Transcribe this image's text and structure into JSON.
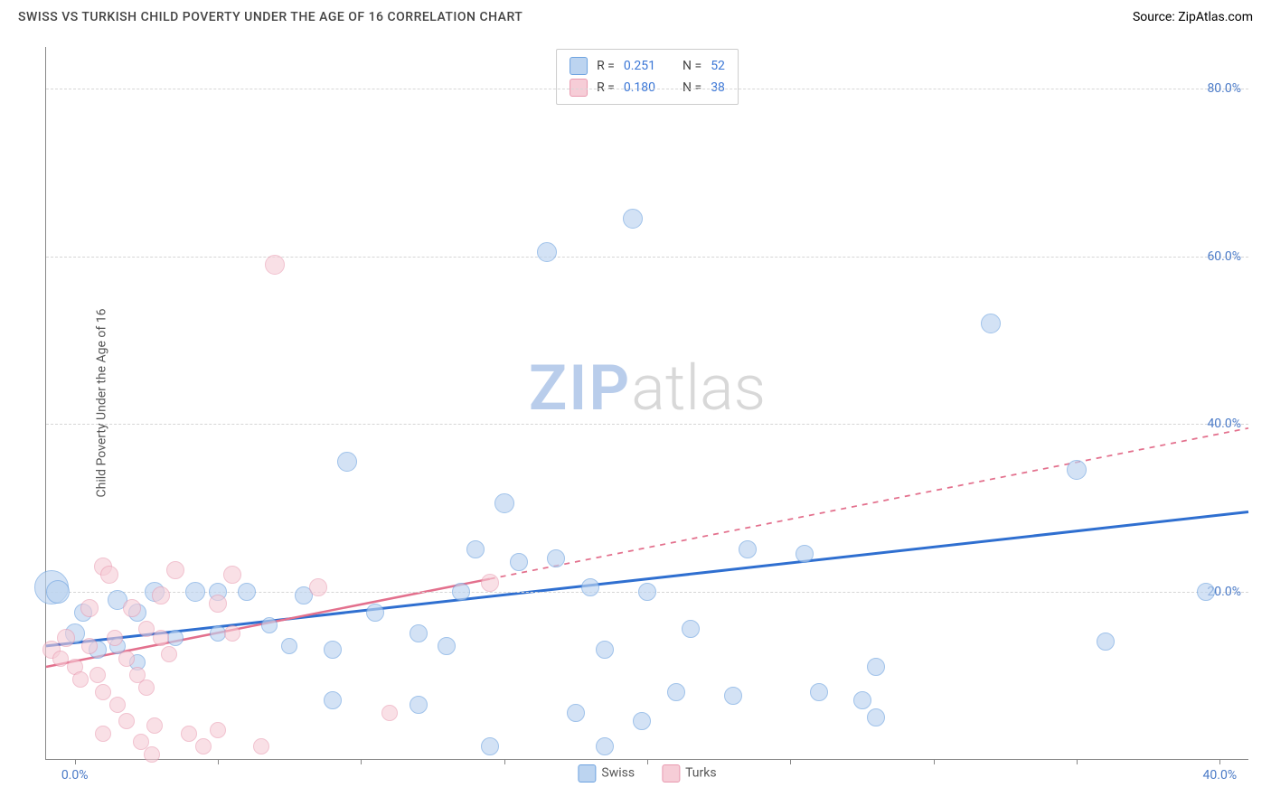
{
  "header": {
    "title": "SWISS VS TURKISH CHILD POVERTY UNDER THE AGE OF 16 CORRELATION CHART",
    "source_prefix": "Source: ",
    "source": "ZipAtlas.com"
  },
  "watermark": {
    "part1": "ZIP",
    "part2": "atlas"
  },
  "chart": {
    "type": "scatter-with-trend",
    "ylabel": "Child Poverty Under the Age of 16",
    "background_color": "#ffffff",
    "grid_color": "#d6d6d6",
    "axis_color": "#888888",
    "xlim": [
      -1,
      41
    ],
    "ylim": [
      0,
      85
    ],
    "yticks": [
      20,
      40,
      60,
      80
    ],
    "ytick_labels": [
      "20.0%",
      "40.0%",
      "60.0%",
      "80.0%"
    ],
    "ytick_color": "#4a7ac7",
    "xtick_marks": [
      0,
      5,
      10,
      15,
      20,
      25,
      30,
      35,
      40
    ],
    "xtick_labels": [
      {
        "x": 0,
        "text": "0.0%"
      },
      {
        "x": 40,
        "text": "40.0%"
      }
    ],
    "legend_top": {
      "border_color": "#cccccc",
      "rows": [
        {
          "swatch_fill": "#bcd4f0",
          "swatch_border": "#6ea3e0",
          "r_label": "R =",
          "r_value": "0.251",
          "n_label": "N =",
          "n_value": "52"
        },
        {
          "swatch_fill": "#f6cdd7",
          "swatch_border": "#e99ab0",
          "r_label": "R =",
          "r_value": "0.180",
          "n_label": "N =",
          "n_value": "38"
        }
      ]
    },
    "legend_bottom": [
      {
        "swatch_fill": "#bcd4f0",
        "swatch_border": "#6ea3e0",
        "label": "Swiss"
      },
      {
        "swatch_fill": "#f6cdd7",
        "swatch_border": "#e99ab0",
        "label": "Turks"
      }
    ],
    "series": [
      {
        "name": "Swiss",
        "marker_fill": "#bcd4f0",
        "marker_border": "#6ea3e0",
        "marker_fill_opacity": 0.65,
        "marker_base_radius": 9,
        "trend": {
          "color": "#2f6fd0",
          "width": 3,
          "solid_from": {
            "x": -1,
            "y": 13.5
          },
          "solid_to": {
            "x": 41,
            "y": 29.5
          },
          "dashed_extend": false
        },
        "points": [
          {
            "x": -0.8,
            "y": 20.5,
            "r": 18
          },
          {
            "x": -0.6,
            "y": 20.0,
            "r": 12
          },
          {
            "x": 0.0,
            "y": 15.0,
            "r": 10
          },
          {
            "x": 0.3,
            "y": 17.5,
            "r": 9
          },
          {
            "x": 0.8,
            "y": 13.0,
            "r": 9
          },
          {
            "x": 1.5,
            "y": 19.0,
            "r": 10
          },
          {
            "x": 1.5,
            "y": 13.5,
            "r": 8
          },
          {
            "x": 2.2,
            "y": 17.5,
            "r": 9
          },
          {
            "x": 2.2,
            "y": 11.5,
            "r": 8
          },
          {
            "x": 2.8,
            "y": 20.0,
            "r": 10
          },
          {
            "x": 3.5,
            "y": 14.5,
            "r": 8
          },
          {
            "x": 4.2,
            "y": 20.0,
            "r": 10
          },
          {
            "x": 5.0,
            "y": 20.0,
            "r": 9
          },
          {
            "x": 5.0,
            "y": 15.0,
            "r": 8
          },
          {
            "x": 6.0,
            "y": 20.0,
            "r": 9
          },
          {
            "x": 6.8,
            "y": 16.0,
            "r": 8
          },
          {
            "x": 7.5,
            "y": 13.5,
            "r": 8
          },
          {
            "x": 8.0,
            "y": 19.5,
            "r": 9
          },
          {
            "x": 9.0,
            "y": 13.0,
            "r": 9
          },
          {
            "x": 9.0,
            "y": 7.0,
            "r": 9
          },
          {
            "x": 9.5,
            "y": 35.5,
            "r": 10
          },
          {
            "x": 10.5,
            "y": 17.5,
            "r": 9
          },
          {
            "x": 12.0,
            "y": 15.0,
            "r": 9
          },
          {
            "x": 12.0,
            "y": 6.5,
            "r": 9
          },
          {
            "x": 13.0,
            "y": 13.5,
            "r": 9
          },
          {
            "x": 13.5,
            "y": 20.0,
            "r": 9
          },
          {
            "x": 14.0,
            "y": 25.0,
            "r": 9
          },
          {
            "x": 14.5,
            "y": 1.5,
            "r": 9
          },
          {
            "x": 15.0,
            "y": 30.5,
            "r": 10
          },
          {
            "x": 15.5,
            "y": 23.5,
            "r": 9
          },
          {
            "x": 16.5,
            "y": 60.5,
            "r": 10
          },
          {
            "x": 16.8,
            "y": 24.0,
            "r": 9
          },
          {
            "x": 17.5,
            "y": 5.5,
            "r": 9
          },
          {
            "x": 18.0,
            "y": 20.5,
            "r": 9
          },
          {
            "x": 18.5,
            "y": 13.0,
            "r": 9
          },
          {
            "x": 18.5,
            "y": 1.5,
            "r": 9
          },
          {
            "x": 19.5,
            "y": 64.5,
            "r": 10
          },
          {
            "x": 19.8,
            "y": 4.5,
            "r": 9
          },
          {
            "x": 20.0,
            "y": 20.0,
            "r": 9
          },
          {
            "x": 21.0,
            "y": 8.0,
            "r": 9
          },
          {
            "x": 21.5,
            "y": 15.5,
            "r": 9
          },
          {
            "x": 23.0,
            "y": 7.5,
            "r": 9
          },
          {
            "x": 23.5,
            "y": 25.0,
            "r": 9
          },
          {
            "x": 25.5,
            "y": 24.5,
            "r": 9
          },
          {
            "x": 26.0,
            "y": 8.0,
            "r": 9
          },
          {
            "x": 27.5,
            "y": 7.0,
            "r": 9
          },
          {
            "x": 28.0,
            "y": 11.0,
            "r": 9
          },
          {
            "x": 28.0,
            "y": 5.0,
            "r": 9
          },
          {
            "x": 32.0,
            "y": 52.0,
            "r": 10
          },
          {
            "x": 35.0,
            "y": 34.5,
            "r": 10
          },
          {
            "x": 36.0,
            "y": 14.0,
            "r": 9
          },
          {
            "x": 39.5,
            "y": 20.0,
            "r": 9
          }
        ]
      },
      {
        "name": "Turks",
        "marker_fill": "#f6cdd7",
        "marker_border": "#e99ab0",
        "marker_fill_opacity": 0.6,
        "marker_base_radius": 9,
        "trend": {
          "color": "#e3708d",
          "width": 2.5,
          "solid_from": {
            "x": -1,
            "y": 11.0
          },
          "solid_to": {
            "x": 14.5,
            "y": 21.5
          },
          "dashed_extend": true,
          "dashed_to": {
            "x": 41,
            "y": 39.5
          },
          "dash_pattern": "6 6"
        },
        "points": [
          {
            "x": -0.8,
            "y": 13.0,
            "r": 9
          },
          {
            "x": -0.5,
            "y": 12.0,
            "r": 8
          },
          {
            "x": -0.3,
            "y": 14.5,
            "r": 9
          },
          {
            "x": 0.0,
            "y": 11.0,
            "r": 8
          },
          {
            "x": 0.2,
            "y": 9.5,
            "r": 8
          },
          {
            "x": 0.5,
            "y": 18.0,
            "r": 9
          },
          {
            "x": 0.5,
            "y": 13.5,
            "r": 8
          },
          {
            "x": 0.8,
            "y": 10.0,
            "r": 8
          },
          {
            "x": 1.0,
            "y": 23.0,
            "r": 9
          },
          {
            "x": 1.2,
            "y": 22.0,
            "r": 9
          },
          {
            "x": 1.0,
            "y": 8.0,
            "r": 8
          },
          {
            "x": 1.0,
            "y": 3.0,
            "r": 8
          },
          {
            "x": 1.4,
            "y": 14.5,
            "r": 8
          },
          {
            "x": 1.5,
            "y": 6.5,
            "r": 8
          },
          {
            "x": 1.8,
            "y": 12.0,
            "r": 8
          },
          {
            "x": 1.8,
            "y": 4.5,
            "r": 8
          },
          {
            "x": 2.0,
            "y": 18.0,
            "r": 9
          },
          {
            "x": 2.2,
            "y": 10.0,
            "r": 8
          },
          {
            "x": 2.3,
            "y": 2.0,
            "r": 8
          },
          {
            "x": 2.5,
            "y": 15.5,
            "r": 8
          },
          {
            "x": 2.5,
            "y": 8.5,
            "r": 8
          },
          {
            "x": 2.7,
            "y": 0.5,
            "r": 8
          },
          {
            "x": 2.8,
            "y": 4.0,
            "r": 8
          },
          {
            "x": 3.0,
            "y": 14.5,
            "r": 8
          },
          {
            "x": 3.0,
            "y": 19.5,
            "r": 9
          },
          {
            "x": 3.3,
            "y": 12.5,
            "r": 8
          },
          {
            "x": 3.5,
            "y": 22.5,
            "r": 9
          },
          {
            "x": 4.0,
            "y": 3.0,
            "r": 8
          },
          {
            "x": 4.5,
            "y": 1.5,
            "r": 8
          },
          {
            "x": 5.0,
            "y": 18.5,
            "r": 9
          },
          {
            "x": 5.0,
            "y": 3.5,
            "r": 8
          },
          {
            "x": 5.5,
            "y": 15.0,
            "r": 8
          },
          {
            "x": 5.5,
            "y": 22.0,
            "r": 9
          },
          {
            "x": 6.5,
            "y": 1.5,
            "r": 8
          },
          {
            "x": 7.0,
            "y": 59.0,
            "r": 10
          },
          {
            "x": 8.5,
            "y": 20.5,
            "r": 9
          },
          {
            "x": 11.0,
            "y": 5.5,
            "r": 8
          },
          {
            "x": 14.5,
            "y": 21.0,
            "r": 9
          }
        ]
      }
    ]
  }
}
